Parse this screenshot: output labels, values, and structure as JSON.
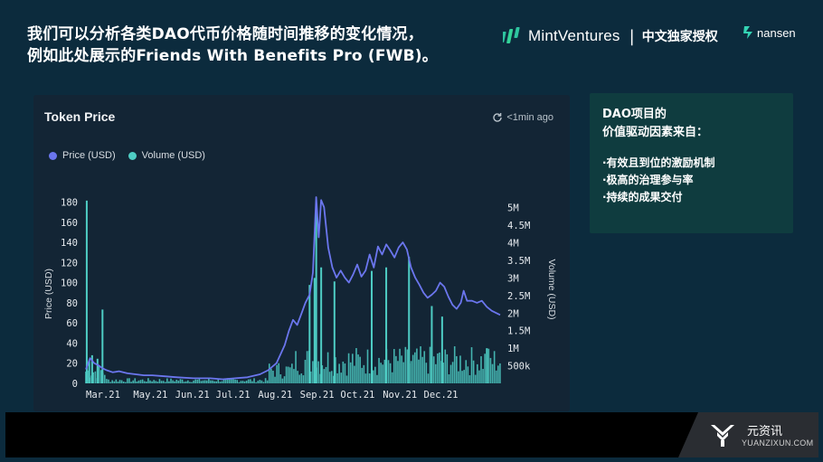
{
  "headline": {
    "line1": "我们可以分析各类DAO代币价格随时间推移的变化情况，",
    "line2": "例如此处展示的Friends With Benefits Pro (FWB)。"
  },
  "brand": {
    "name": "MintVentures",
    "separator": "|",
    "license": "中文独家授权",
    "partner": "nansen"
  },
  "chart_card": {
    "title": "Token Price",
    "updated": "<1min ago"
  },
  "info_card": {
    "title_line1": "DAO项目的",
    "title_line2": "价值驱动因素来自：",
    "items": [
      "·有效且到位的激励机制",
      "·极高的治理参与率",
      "·持续的成果交付"
    ]
  },
  "footer": {
    "site_name": "元资讯",
    "site_domain": "YUANZIXUN.COM"
  },
  "chart_data": {
    "type": "line",
    "ylabel": "Price (USD)",
    "y2label": "Volume (USD)",
    "ylim": [
      0,
      185
    ],
    "y2lim": [
      0,
      5300000
    ],
    "yticks": [
      0,
      20,
      40,
      60,
      80,
      100,
      120,
      140,
      160,
      180
    ],
    "y2ticks": [
      {
        "v": 500000,
        "label": "500k"
      },
      {
        "v": 1000000,
        "label": "1M"
      },
      {
        "v": 1500000,
        "label": "1.5M"
      },
      {
        "v": 2000000,
        "label": "2M"
      },
      {
        "v": 2500000,
        "label": "2.5M"
      },
      {
        "v": 3000000,
        "label": "3M"
      },
      {
        "v": 3500000,
        "label": "3.5M"
      },
      {
        "v": 4000000,
        "label": "4M"
      },
      {
        "v": 4500000,
        "label": "4.5M"
      },
      {
        "v": 5000000,
        "label": "5M"
      }
    ],
    "xrange": [
      0,
      1
    ],
    "xticks": [
      {
        "x": 0.0,
        "label": "Mar.21"
      },
      {
        "x": 0.156,
        "label": "May.21"
      },
      {
        "x": 0.257,
        "label": "Jun.21"
      },
      {
        "x": 0.355,
        "label": "Jul.21"
      },
      {
        "x": 0.457,
        "label": "Aug.21"
      },
      {
        "x": 0.558,
        "label": "Sep.21"
      },
      {
        "x": 0.656,
        "label": "Oct.21"
      },
      {
        "x": 0.758,
        "label": "Nov.21"
      },
      {
        "x": 0.857,
        "label": "Dec.21"
      }
    ],
    "legend_position": "top-left",
    "series": [
      {
        "name": "Price (USD)",
        "kind": "line",
        "color": "#6b76ee",
        "points": [
          [
            0.0,
            14
          ],
          [
            0.01,
            25
          ],
          [
            0.02,
            20
          ],
          [
            0.03,
            18
          ],
          [
            0.04,
            15
          ],
          [
            0.05,
            13
          ],
          [
            0.065,
            11
          ],
          [
            0.08,
            12
          ],
          [
            0.1,
            10
          ],
          [
            0.12,
            9
          ],
          [
            0.14,
            8
          ],
          [
            0.16,
            8
          ],
          [
            0.19,
            7
          ],
          [
            0.22,
            6
          ],
          [
            0.26,
            5
          ],
          [
            0.3,
            5
          ],
          [
            0.33,
            4
          ],
          [
            0.36,
            5
          ],
          [
            0.39,
            6
          ],
          [
            0.42,
            9
          ],
          [
            0.44,
            13
          ],
          [
            0.46,
            20
          ],
          [
            0.48,
            38
          ],
          [
            0.49,
            52
          ],
          [
            0.5,
            63
          ],
          [
            0.51,
            58
          ],
          [
            0.52,
            69
          ],
          [
            0.53,
            80
          ],
          [
            0.54,
            88
          ],
          [
            0.548,
            110
          ],
          [
            0.556,
            185
          ],
          [
            0.562,
            145
          ],
          [
            0.568,
            182
          ],
          [
            0.575,
            175
          ],
          [
            0.585,
            135
          ],
          [
            0.595,
            115
          ],
          [
            0.605,
            105
          ],
          [
            0.615,
            112
          ],
          [
            0.625,
            105
          ],
          [
            0.635,
            100
          ],
          [
            0.645,
            108
          ],
          [
            0.655,
            118
          ],
          [
            0.665,
            106
          ],
          [
            0.675,
            112
          ],
          [
            0.685,
            128
          ],
          [
            0.695,
            115
          ],
          [
            0.705,
            136
          ],
          [
            0.715,
            128
          ],
          [
            0.725,
            138
          ],
          [
            0.735,
            132
          ],
          [
            0.745,
            125
          ],
          [
            0.755,
            135
          ],
          [
            0.765,
            140
          ],
          [
            0.775,
            133
          ],
          [
            0.785,
            115
          ],
          [
            0.795,
            105
          ],
          [
            0.805,
            98
          ],
          [
            0.815,
            90
          ],
          [
            0.825,
            85
          ],
          [
            0.835,
            88
          ],
          [
            0.845,
            92
          ],
          [
            0.855,
            100
          ],
          [
            0.865,
            96
          ],
          [
            0.875,
            86
          ],
          [
            0.885,
            78
          ],
          [
            0.895,
            74
          ],
          [
            0.905,
            80
          ],
          [
            0.912,
            92
          ],
          [
            0.92,
            82
          ],
          [
            0.932,
            82
          ],
          [
            0.944,
            80
          ],
          [
            0.956,
            82
          ],
          [
            0.968,
            76
          ],
          [
            0.98,
            72
          ],
          [
            1.0,
            68
          ]
        ]
      },
      {
        "name": "Volume (USD)",
        "kind": "bar",
        "color": "#4ecdc4",
        "spikes": [
          [
            0.002,
            5200000
          ],
          [
            0.008,
            650000
          ],
          [
            0.015,
            800000
          ],
          [
            0.028,
            700000
          ],
          [
            0.04,
            2100000
          ],
          [
            0.54,
            2800000
          ],
          [
            0.552,
            3000000
          ],
          [
            0.556,
            5100000
          ],
          [
            0.568,
            3300000
          ],
          [
            0.6,
            2900000
          ],
          [
            0.69,
            3200000
          ],
          [
            0.725,
            3300000
          ],
          [
            0.78,
            3600000
          ],
          [
            0.835,
            2200000
          ],
          [
            0.86,
            1900000
          ],
          [
            0.968,
            1000000
          ]
        ]
      }
    ]
  }
}
